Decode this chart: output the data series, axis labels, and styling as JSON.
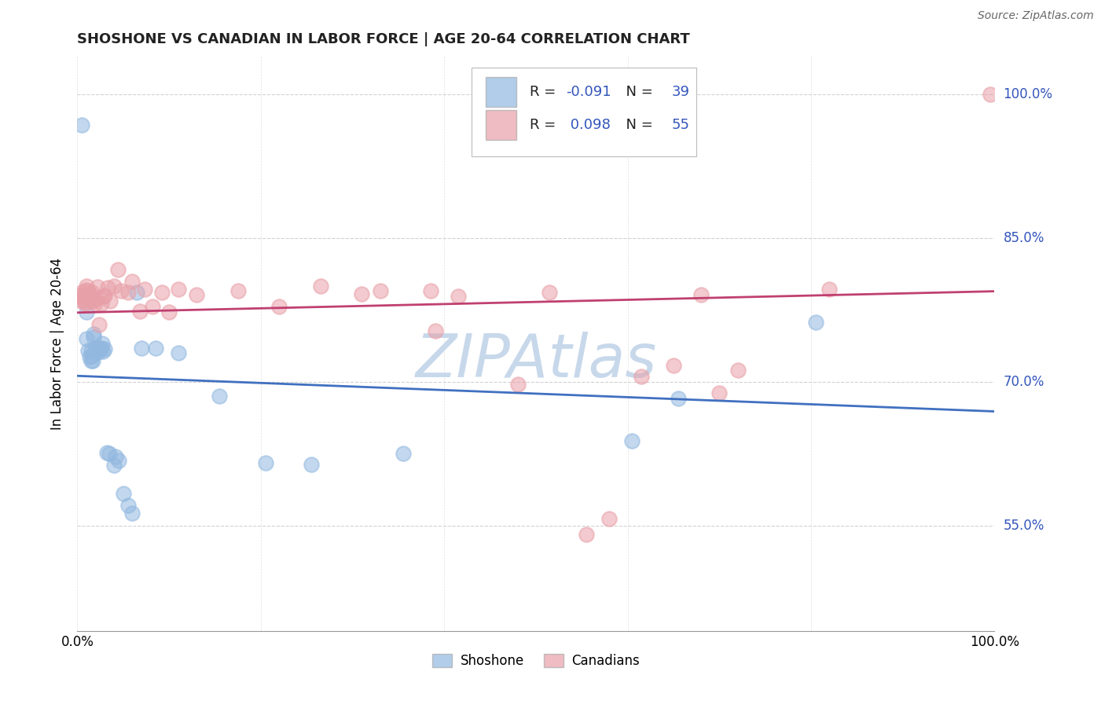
{
  "title": "SHOSHONE VS CANADIAN IN LABOR FORCE | AGE 20-64 CORRELATION CHART",
  "source": "Source: ZipAtlas.com",
  "ylabel": "In Labor Force | Age 20-64",
  "R_shoshone": -0.091,
  "N_shoshone": 39,
  "R_canadians": 0.098,
  "N_canadians": 55,
  "shoshone_color": "#92b8e0",
  "canadian_color": "#e8a0a8",
  "shoshone_line_color": "#4070c0",
  "canadian_line_color": "#c04070",
  "label_color": "#3355bb",
  "watermark": "ZIPAtlas",
  "watermark_color": "#c8d8eb",
  "legend_shoshone": "Shoshone",
  "legend_canadians": "Canadians",
  "xlim": [
    0.0,
    1.0
  ],
  "ylim": [
    0.44,
    1.04
  ],
  "yticks": [
    0.55,
    0.7,
    0.85,
    1.0
  ],
  "ytick_labels": [
    "55.0%",
    "70.0%",
    "85.0%",
    "100.0%"
  ],
  "shoshone_x": [
    0.005,
    0.01,
    0.01,
    0.012,
    0.013,
    0.015,
    0.015,
    0.016,
    0.017,
    0.018,
    0.018,
    0.019,
    0.02,
    0.022,
    0.023,
    0.025,
    0.026,
    0.027,
    0.028,
    0.03,
    0.032,
    0.035,
    0.04,
    0.042,
    0.045,
    0.05,
    0.055,
    0.06,
    0.065,
    0.07,
    0.085,
    0.11,
    0.155,
    0.205,
    0.255,
    0.355,
    0.605,
    0.655,
    0.805
  ],
  "shoshone_y": [
    0.968,
    0.773,
    0.745,
    0.733,
    0.726,
    0.733,
    0.722,
    0.727,
    0.722,
    0.75,
    0.747,
    0.735,
    0.732,
    0.735,
    0.731,
    0.734,
    0.735,
    0.74,
    0.732,
    0.734,
    0.626,
    0.625,
    0.613,
    0.622,
    0.618,
    0.583,
    0.571,
    0.563,
    0.793,
    0.735,
    0.735,
    0.73,
    0.685,
    0.615,
    0.614,
    0.625,
    0.638,
    0.683,
    0.762
  ],
  "canadian_x": [
    0.002,
    0.003,
    0.005,
    0.006,
    0.007,
    0.008,
    0.009,
    0.01,
    0.01,
    0.012,
    0.013,
    0.014,
    0.015,
    0.016,
    0.017,
    0.019,
    0.02,
    0.022,
    0.024,
    0.026,
    0.028,
    0.03,
    0.033,
    0.036,
    0.04,
    0.044,
    0.048,
    0.055,
    0.06,
    0.068,
    0.073,
    0.082,
    0.092,
    0.1,
    0.11,
    0.13,
    0.175,
    0.22,
    0.265,
    0.31,
    0.33,
    0.385,
    0.39,
    0.415,
    0.48,
    0.515,
    0.555,
    0.58,
    0.615,
    0.65,
    0.68,
    0.7,
    0.72,
    0.82,
    0.995
  ],
  "canadian_y": [
    0.785,
    0.79,
    0.793,
    0.789,
    0.785,
    0.782,
    0.796,
    0.8,
    0.783,
    0.795,
    0.786,
    0.789,
    0.79,
    0.793,
    0.784,
    0.782,
    0.786,
    0.799,
    0.76,
    0.782,
    0.789,
    0.79,
    0.798,
    0.784,
    0.8,
    0.817,
    0.795,
    0.793,
    0.805,
    0.774,
    0.797,
    0.779,
    0.793,
    0.773,
    0.797,
    0.791,
    0.795,
    0.779,
    0.8,
    0.792,
    0.795,
    0.795,
    0.753,
    0.789,
    0.697,
    0.793,
    0.541,
    0.557,
    0.706,
    0.717,
    0.791,
    0.688,
    0.712,
    0.797,
    1.0
  ]
}
